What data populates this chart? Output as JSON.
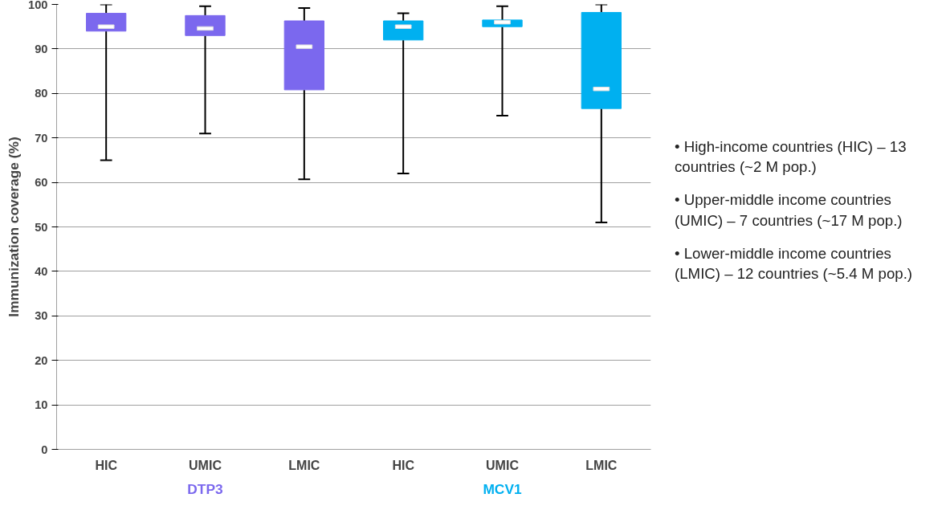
{
  "chart_data": {
    "type": "box",
    "ylabel": "Immunization coverage (%)",
    "categories": [
      "HIC",
      "UMIC",
      "LMIC",
      "HIC",
      "UMIC",
      "LMIC"
    ],
    "series": [
      {
        "name": "DTP3",
        "color": "#7b68ee",
        "boxes": [
          {
            "low": 65,
            "q1": 94,
            "median": 95,
            "q3": 98,
            "high": 100
          },
          {
            "low": 71,
            "q1": 93,
            "median": 94.6,
            "q3": 97.5,
            "high": 99.6
          },
          {
            "low": 60.7,
            "q1": 80.8,
            "median": 90.5,
            "q3": 96.3,
            "high": 99.2
          },
          null,
          null,
          null
        ]
      },
      {
        "name": "MCV1",
        "color": "#00b0f0",
        "boxes": [
          null,
          null,
          null,
          {
            "low": 62,
            "q1": 92,
            "median": 95,
            "q3": 96.3,
            "high": 98
          },
          {
            "low": 75,
            "q1": 95,
            "median": 96,
            "q3": 96.5,
            "high": 99.6
          },
          {
            "low": 51,
            "q1": 76.6,
            "median": 81,
            "q3": 98.2,
            "high": 100
          }
        ]
      }
    ],
    "ylim": [
      0,
      100
    ],
    "yticks": [
      0,
      10,
      20,
      30,
      40,
      50,
      60,
      70,
      80,
      90,
      100
    ],
    "grid": "y",
    "annotations": [
      "• High-income countries (HIC) – 13 countries (~2 M pop.)",
      "• Upper-middle income countries (UMIC) – 7 countries (~17 M pop.)",
      "• Lower-middle income countries (LMIC) – 12 countries (~5.4 M pop.)"
    ]
  }
}
